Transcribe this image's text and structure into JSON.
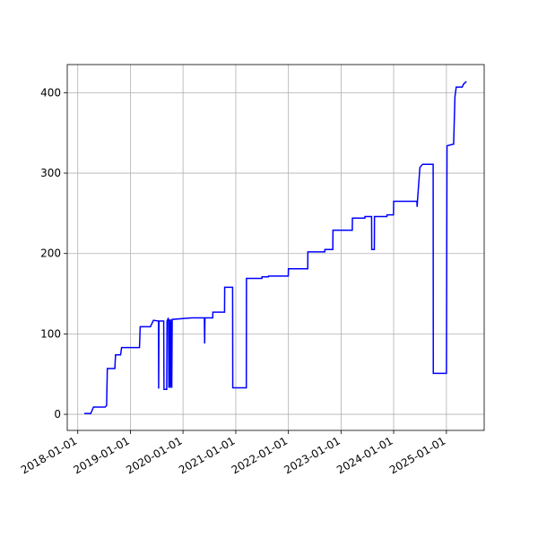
{
  "chart_data": {
    "type": "line",
    "x": [
      "2018-02-15",
      "2018-04-01",
      "2018-04-20",
      "2018-07-10",
      "2018-07-20",
      "2018-07-25",
      "2018-09-15",
      "2018-09-20",
      "2018-10-25",
      "2018-11-01",
      "2019-03-05",
      "2019-03-10",
      "2019-05-20",
      "2019-06-10",
      "2019-07-15",
      "2019-07-16",
      "2019-07-18",
      "2019-08-20",
      "2019-08-22",
      "2019-09-10",
      "2019-09-12",
      "2019-09-20",
      "2019-09-22",
      "2019-09-25",
      "2019-09-28",
      "2019-10-05",
      "2019-10-08",
      "2019-10-15",
      "2019-10-18",
      "2020-03-01",
      "2020-05-28",
      "2020-05-30",
      "2020-06-01",
      "2020-07-25",
      "2020-07-26",
      "2020-10-15",
      "2020-10-16",
      "2020-12-10",
      "2020-12-11",
      "2021-03-15",
      "2021-03-16",
      "2021-07-01",
      "2021-07-02",
      "2021-08-15",
      "2021-08-16",
      "2021-12-31",
      "2022-01-01",
      "2022-05-15",
      "2022-05-16",
      "2022-09-10",
      "2022-09-11",
      "2022-11-05",
      "2022-11-06",
      "2023-03-20",
      "2023-03-21",
      "2023-06-15",
      "2023-06-16",
      "2023-08-01",
      "2023-08-02",
      "2023-08-20",
      "2023-08-21",
      "2023-11-15",
      "2023-11-16",
      "2023-12-31",
      "2024-01-01",
      "2024-06-10",
      "2024-06-12",
      "2024-06-14",
      "2024-07-01",
      "2024-07-20",
      "2024-10-01",
      "2024-10-02",
      "2025-01-01",
      "2025-01-05",
      "2025-02-20",
      "2025-03-01",
      "2025-03-10",
      "2025-04-20",
      "2025-05-01",
      "2025-05-20"
    ],
    "series": [
      {
        "color": "#0000ff",
        "values": [
          1,
          1,
          9,
          9,
          11,
          57,
          57,
          74,
          74,
          83,
          83,
          109,
          109,
          117,
          116,
          32,
          116,
          116,
          31,
          31,
          116,
          119,
          118,
          33,
          118,
          33,
          118,
          33,
          118,
          120,
          120,
          88,
          120,
          120,
          127,
          127,
          158,
          158,
          33,
          33,
          169,
          169,
          171,
          171,
          172,
          172,
          181,
          181,
          202,
          202,
          205,
          205,
          229,
          229,
          244,
          244,
          246,
          246,
          205,
          205,
          246,
          246,
          248,
          248,
          265,
          265,
          258,
          265,
          307,
          311,
          311,
          51,
          51,
          334,
          336,
          395,
          407,
          407,
          411,
          414
        ]
      }
    ],
    "xlim": [
      "2017-10-20",
      "2025-09-20"
    ],
    "xticks": [
      "2018-01-01",
      "2019-01-01",
      "2020-01-01",
      "2021-01-01",
      "2022-01-01",
      "2023-01-01",
      "2024-01-01",
      "2025-01-01"
    ],
    "ylim": [
      -20,
      435
    ],
    "yticks": [
      0,
      100,
      200,
      300,
      400
    ],
    "grid": true
  }
}
